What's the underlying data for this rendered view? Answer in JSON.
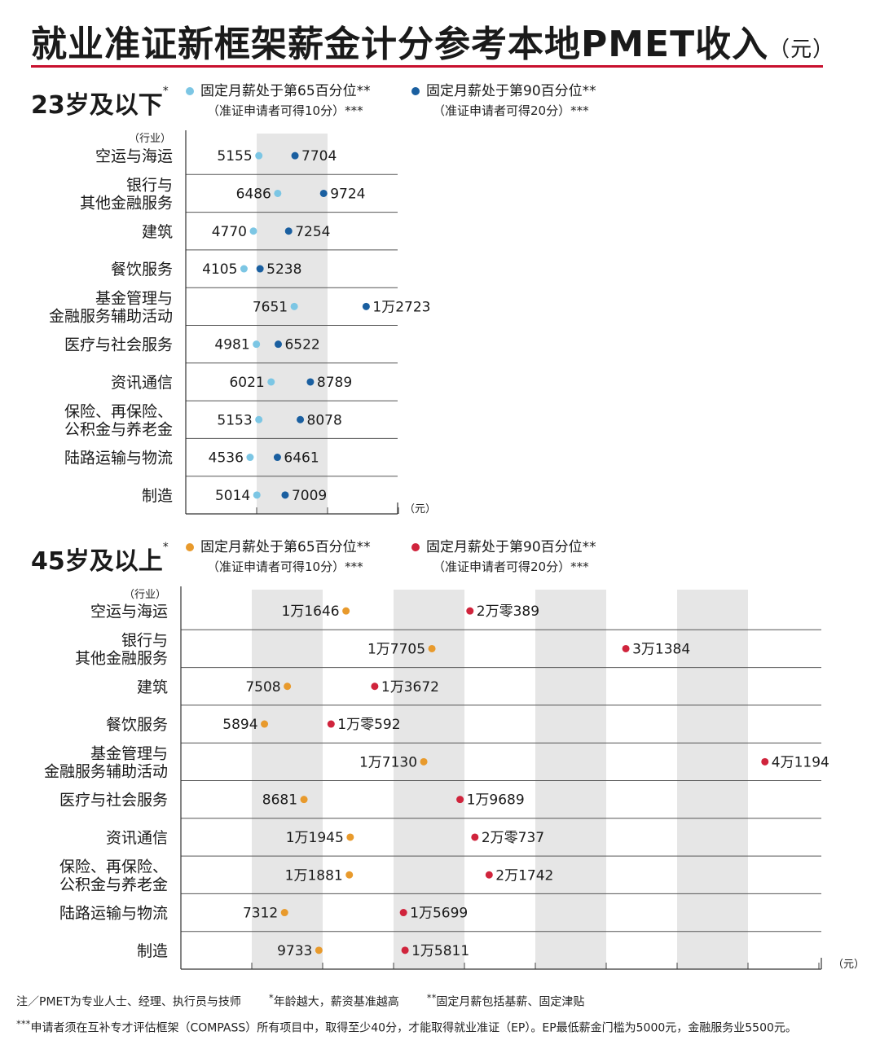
{
  "title": {
    "main": "就业准证新框架薪金计分参考本地PMET收入",
    "unit": "（元）"
  },
  "sections": [
    {
      "heading": "23岁及以下",
      "heading_mark": "*",
      "legend": [
        {
          "label": "固定月薪处于第65百分位**",
          "sub": "（准证申请者可得10分）***",
          "color": "#7cc6e4"
        },
        {
          "label": "固定月薪处于第90百分位**",
          "sub": "（准证申请者可得20分）***",
          "color": "#1a5fa0"
        }
      ]
    },
    {
      "heading": "45岁及以上",
      "heading_mark": "*",
      "legend": [
        {
          "label": "固定月薪处于第65百分位**",
          "sub": "（准证申请者可得10分）***",
          "color": "#e89a2c"
        },
        {
          "label": "固定月薪处于第90百分位**",
          "sub": "（准证申请者可得20分）***",
          "color": "#d0243c"
        }
      ]
    }
  ],
  "chart_data": [
    {
      "type": "dumbbell",
      "category_axis_label": "（行业）",
      "value_axis_label": "（元）",
      "xlim": [
        0,
        15000
      ],
      "grid_band_step": 5000,
      "start_color": "#7cc6e4",
      "end_color": "#1a5fa0",
      "categories": [
        "空运与海运",
        "银行与\n其他金融服务",
        "建筑",
        "餐饮服务",
        "基金管理与\n金融服务辅助活动",
        "医疗与社会服务",
        "资讯通信",
        "保险、再保险、\n公积金与养老金",
        "陆路运输与物流",
        "制造"
      ],
      "series": [
        {
          "name": "固定月薪处于第65百分位**",
          "values": [
            5155,
            6486,
            4770,
            4105,
            7651,
            4981,
            6021,
            5153,
            4536,
            5014
          ],
          "labels": [
            "5155",
            "6486",
            "4770",
            "4105",
            "7651",
            "4981",
            "6021",
            "5153",
            "4536",
            "5014"
          ]
        },
        {
          "name": "固定月薪处于第90百分位**",
          "values": [
            7704,
            9724,
            7254,
            5238,
            12723,
            6522,
            8789,
            8078,
            6461,
            7009
          ],
          "labels": [
            "7704",
            "9724",
            "7254",
            "5238",
            "1万2723",
            "6522",
            "8789",
            "8078",
            "6461",
            "7009"
          ]
        }
      ]
    },
    {
      "type": "dumbbell",
      "category_axis_label": "（行业）",
      "value_axis_label": "（元）",
      "xlim": [
        0,
        45000
      ],
      "grid_band_step": 5000,
      "start_color": "#e89a2c",
      "end_color": "#d0243c",
      "categories": [
        "空运与海运",
        "银行与\n其他金融服务",
        "建筑",
        "餐饮服务",
        "基金管理与\n金融服务辅助活动",
        "医疗与社会服务",
        "资讯通信",
        "保险、再保险、\n公积金与养老金",
        "陆路运输与物流",
        "制造"
      ],
      "series": [
        {
          "name": "固定月薪处于第65百分位**",
          "values": [
            11646,
            17705,
            7508,
            5894,
            17130,
            8681,
            11945,
            11881,
            7312,
            9733
          ],
          "labels": [
            "1万1646",
            "1万7705",
            "7508",
            "5894",
            "1万7130",
            "8681",
            "1万1945",
            "1万1881",
            "7312",
            "9733"
          ]
        },
        {
          "name": "固定月薪处于第90百分位**",
          "values": [
            20389,
            31384,
            13672,
            10592,
            41194,
            19689,
            20737,
            21742,
            15699,
            15811
          ],
          "labels": [
            "2万零389",
            "3万1384",
            "1万3672",
            "1万零592",
            "4万1194",
            "1万9689",
            "2万零737",
            "2万1742",
            "1万5699",
            "1万5811"
          ]
        }
      ]
    }
  ],
  "notes": {
    "pmet": "注／PMET为专业人士、经理、执行员与技师",
    "age_mark": "*",
    "age": "年龄越大，薪资基准越高",
    "fixed_mark": "**",
    "fixed": "固定月薪包括基薪、固定津贴",
    "compass_mark": "***",
    "compass": "申请者须在互补专才评估框架（COMPASS）所有项目中，取得至少40分，才能取得就业准证（EP）。EP最低薪金门槛为5000元，金融服务业5500元。"
  }
}
